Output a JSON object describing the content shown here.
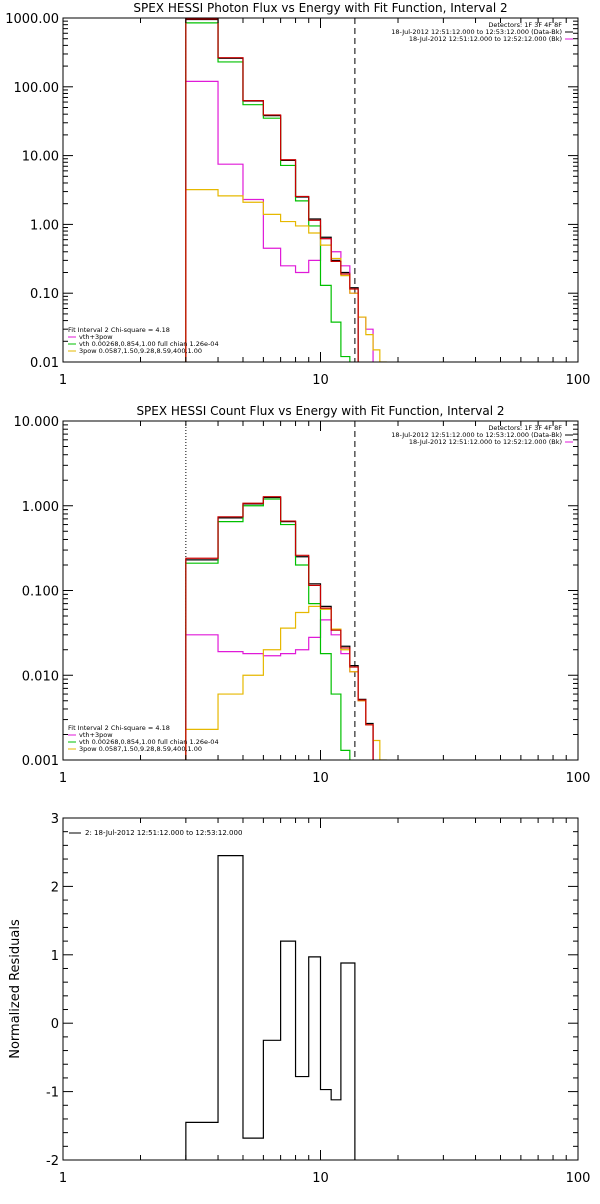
{
  "chart_data": [
    {
      "type": "line",
      "title": "SPEX HESSI Photon Flux vs Energy with Fit Function, Interval 2",
      "xscale": "log",
      "yscale": "log",
      "xlim": [
        1,
        100
      ],
      "ylim": [
        0.01,
        1000
      ],
      "xticks": [
        {
          "v": 1,
          "label": "1"
        },
        {
          "v": 10,
          "label": "10"
        },
        {
          "v": 100,
          "label": "100"
        }
      ],
      "yticks": [
        {
          "v": 1000,
          "label": "1000.00"
        },
        {
          "v": 100,
          "label": "100.00"
        },
        {
          "v": 10,
          "label": "10.00"
        },
        {
          "v": 1,
          "label": "1.00"
        },
        {
          "v": 0.1,
          "label": "0.10"
        },
        {
          "v": 0.01,
          "label": "0.01"
        }
      ],
      "vlines": [
        {
          "x": 3.0,
          "style": "dotted",
          "color": "#e6b800"
        },
        {
          "x": 13.6,
          "style": "dashed",
          "color": "#000000"
        }
      ],
      "info_top_right": [
        {
          "text": "Detectors: 1F 3F 4F 8F",
          "color": "#000000"
        },
        {
          "text": "18-Jul-2012 12:51:12.000 to 12:53:12.000 (Data-Bk)",
          "color": "#000000"
        },
        {
          "text": "18-Jul-2012 12:51:12.000 to 12:52:12.000 (Bk)",
          "color": "#000000"
        }
      ],
      "legend_bottom_left": [
        {
          "text": "Fit Interval 2   Chi-square = 4.18",
          "color": "#000000"
        },
        {
          "text": "vth+3pow",
          "color": "#e01ad8"
        },
        {
          "text": "vth 0.00268,0.854,1.00   full chian 1.26e-04",
          "color": "#00c000"
        },
        {
          "text": "3pow 0.0587,1.50,9.28,8.59,400,1.00",
          "color": "#e6b800"
        }
      ],
      "series": [
        {
          "color": "#000000",
          "edges": [
            3,
            4,
            5,
            6,
            7,
            8,
            9,
            10,
            11,
            12,
            13,
            14
          ],
          "values": [
            950,
            260,
            62,
            38,
            8.5,
            2.5,
            1.2,
            0.65,
            0.3,
            0.2,
            0.12
          ]
        },
        {
          "color": "#e01ad8",
          "edges": [
            3,
            4,
            5,
            6,
            7,
            8,
            9,
            10,
            11,
            12,
            13,
            14,
            15,
            16
          ],
          "values": [
            120,
            7.5,
            2.3,
            0.45,
            0.25,
            0.2,
            0.3,
            0.62,
            0.4,
            0.25,
            0.1,
            0.045,
            0.03
          ]
        },
        {
          "color": "#00c000",
          "edges": [
            3,
            4,
            5,
            6,
            7,
            8,
            9,
            10,
            11,
            12,
            13
          ],
          "values": [
            850,
            230,
            55,
            35,
            7.2,
            2.2,
            0.95,
            0.13,
            0.038,
            0.012
          ]
        },
        {
          "color": "#e6b800",
          "edges": [
            3,
            4,
            5,
            6,
            7,
            8,
            9,
            10,
            11,
            12,
            13,
            14,
            15,
            16,
            17,
            18
          ],
          "values": [
            3.2,
            2.6,
            2.1,
            1.4,
            1.1,
            0.95,
            0.75,
            0.5,
            0.32,
            0.18,
            0.1,
            0.045,
            0.025,
            0.015,
            0.01
          ]
        },
        {
          "color": "#c80000",
          "edges": [
            3,
            4,
            5,
            6,
            7,
            8,
            9,
            10,
            11,
            12,
            13,
            14
          ],
          "values": [
            970,
            265,
            63,
            39,
            8.7,
            2.55,
            1.15,
            0.62,
            0.29,
            0.19,
            0.115
          ]
        }
      ]
    },
    {
      "type": "line",
      "title": "SPEX HESSI Count Flux vs Energy with Fit Function, Interval 2",
      "xscale": "log",
      "yscale": "log",
      "xlim": [
        1,
        100
      ],
      "ylim": [
        0.001,
        10
      ],
      "xticks": [
        {
          "v": 1,
          "label": "1"
        },
        {
          "v": 10,
          "label": "10"
        },
        {
          "v": 100,
          "label": "100"
        }
      ],
      "yticks": [
        {
          "v": 10,
          "label": "10.000"
        },
        {
          "v": 1,
          "label": "1.000"
        },
        {
          "v": 0.1,
          "label": "0.100"
        },
        {
          "v": 0.01,
          "label": "0.010"
        },
        {
          "v": 0.001,
          "label": "0.001"
        }
      ],
      "vlines": [
        {
          "x": 3.0,
          "style": "dotted",
          "color": "#000000"
        },
        {
          "x": 13.6,
          "style": "dashed",
          "color": "#000000"
        }
      ],
      "info_top_right": [
        {
          "text": "Detectors: 1F 3F 4F 8F",
          "color": "#000000"
        },
        {
          "text": "18-Jul-2012 12:51:12.000 to 12:53:12.000 (Data-Bk)",
          "color": "#000000"
        },
        {
          "text": "18-Jul-2012 12:51:12.000 to 12:52:12.000 (Bk)",
          "color": "#000000"
        }
      ],
      "legend_bottom_left": [
        {
          "text": "Fit Interval 2   Chi-square = 4.18",
          "color": "#000000"
        },
        {
          "text": "vth+3pow",
          "color": "#e01ad8"
        },
        {
          "text": "vth 0.00268,0.854,1.00   full chian 1.26e-04",
          "color": "#00c000"
        },
        {
          "text": "3pow 0.0587,1.50,9.28,8.59,400,1.00",
          "color": "#e6b800"
        }
      ],
      "series": [
        {
          "color": "#000000",
          "edges": [
            3,
            4,
            5,
            6,
            7,
            8,
            9,
            10,
            11,
            12,
            13,
            14,
            15,
            16
          ],
          "values": [
            0.23,
            0.72,
            1.05,
            1.25,
            0.65,
            0.25,
            0.12,
            0.065,
            0.035,
            0.022,
            0.013,
            0.0052,
            0.0027
          ]
        },
        {
          "color": "#e01ad8",
          "edges": [
            3,
            4,
            5,
            6,
            7,
            8,
            9,
            10,
            11,
            12,
            13,
            14,
            15,
            16
          ],
          "values": [
            0.03,
            0.019,
            0.018,
            0.017,
            0.018,
            0.02,
            0.028,
            0.045,
            0.03,
            0.018,
            0.011,
            0.005,
            0.0026
          ]
        },
        {
          "color": "#00c000",
          "edges": [
            3,
            4,
            5,
            6,
            7,
            8,
            9,
            10,
            11,
            12,
            13
          ],
          "values": [
            0.21,
            0.65,
            1.0,
            1.2,
            0.6,
            0.2,
            0.07,
            0.018,
            0.006,
            0.0013
          ]
        },
        {
          "color": "#e6b800",
          "edges": [
            3,
            4,
            5,
            6,
            7,
            8,
            9,
            10,
            11,
            12,
            13,
            14,
            15,
            16,
            17,
            18
          ],
          "values": [
            0.0023,
            0.006,
            0.01,
            0.02,
            0.036,
            0.055,
            0.065,
            0.06,
            0.035,
            0.02,
            0.011,
            0.005,
            0.0026,
            0.0017,
            0.001
          ]
        },
        {
          "color": "#c80000",
          "edges": [
            3,
            4,
            5,
            6,
            7,
            8,
            9,
            10,
            11,
            12,
            13,
            14,
            15,
            16
          ],
          "values": [
            0.24,
            0.74,
            1.07,
            1.28,
            0.66,
            0.26,
            0.115,
            0.062,
            0.034,
            0.021,
            0.0125,
            0.0051,
            0.0026
          ]
        }
      ]
    },
    {
      "type": "line",
      "title": "",
      "ylabel": "Normalized Residuals",
      "xscale": "log",
      "yscale": "linear",
      "xlim": [
        1,
        100
      ],
      "ylim": [
        -2,
        3
      ],
      "xticks": [
        {
          "v": 1,
          "label": "1"
        },
        {
          "v": 10,
          "label": "10"
        },
        {
          "v": 100,
          "label": "100"
        }
      ],
      "yticks": [
        {
          "v": 3,
          "label": "3"
        },
        {
          "v": 2,
          "label": "2"
        },
        {
          "v": 1,
          "label": "1"
        },
        {
          "v": 0,
          "label": "0"
        },
        {
          "v": -1,
          "label": "-1"
        },
        {
          "v": -2,
          "label": "-2"
        }
      ],
      "vlines": [],
      "info_top_right": [],
      "legend_top_left": [
        {
          "text": "2: 18-Jul-2012 12:51:12.000 to 12:53:12.000",
          "color": "#000000"
        }
      ],
      "series": [
        {
          "color": "#000000",
          "edges": [
            3,
            4,
            5,
            6,
            7,
            8,
            9,
            10,
            11,
            12,
            13.6
          ],
          "values": [
            -1.45,
            2.45,
            -1.68,
            -0.25,
            1.2,
            -0.78,
            0.97,
            -0.97,
            -1.12,
            0.88
          ]
        }
      ]
    }
  ]
}
